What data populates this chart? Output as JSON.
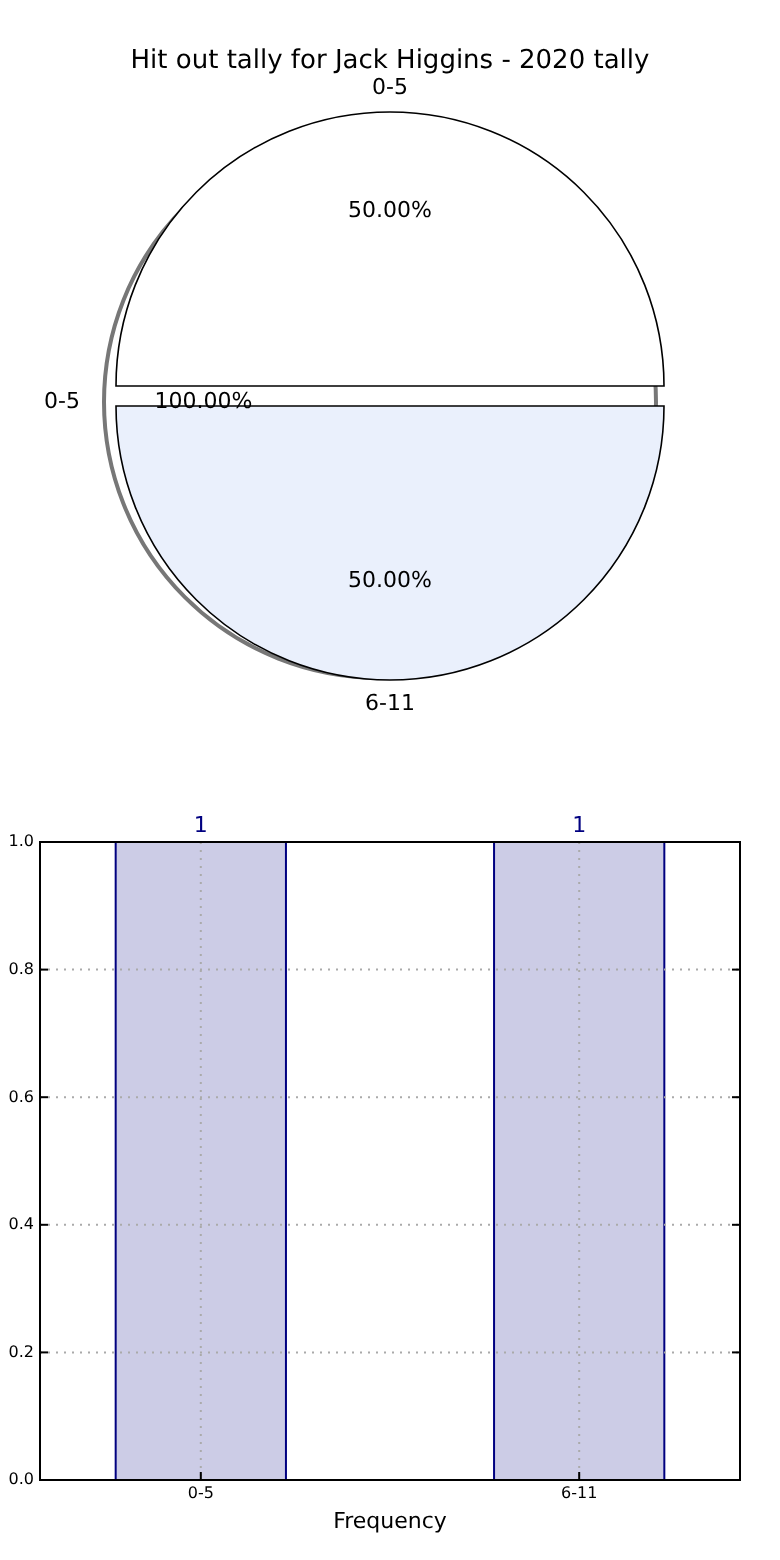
{
  "chart_data": [
    {
      "type": "pie",
      "title": "Hit out tally for Jack Higgins - 2020 tally",
      "categories": [
        "0-5",
        "6-11"
      ],
      "values": [
        50,
        50
      ],
      "colors": [
        "#ffffff",
        "#eaf0fc"
      ],
      "value_labels": [
        "50.00%",
        "50.00%"
      ]
    },
    {
      "type": "pie",
      "categories": [
        "0-5"
      ],
      "values": [
        100
      ],
      "colors": [
        "#ffffff"
      ],
      "value_labels": [
        "100.00%"
      ]
    },
    {
      "type": "bar",
      "categories": [
        "0-5",
        "6-11"
      ],
      "values": [
        1,
        1
      ],
      "color": "#cccce6",
      "xlabel": "Frequency",
      "ylim": [
        0,
        1
      ],
      "yticks": [
        {
          "value": 0,
          "label": "0.0"
        },
        {
          "value": 0.2,
          "label": "0.2"
        },
        {
          "value": 0.4,
          "label": "0.4"
        },
        {
          "value": 0.6,
          "label": "0.6"
        },
        {
          "value": 0.8,
          "label": "0.8"
        },
        {
          "value": 1,
          "label": "1.0"
        }
      ],
      "grid": true,
      "data_labels": true
    }
  ]
}
